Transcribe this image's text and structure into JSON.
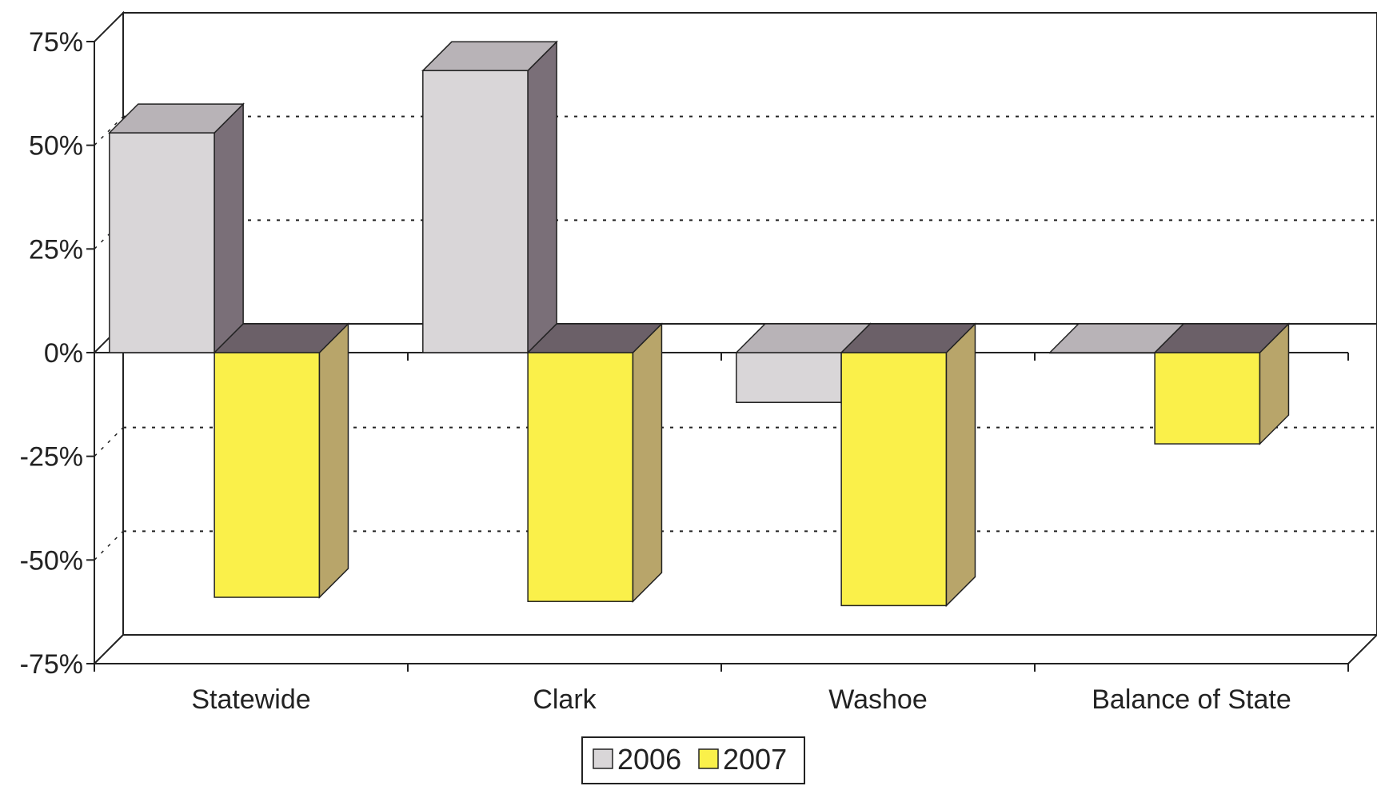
{
  "chart_data": {
    "type": "bar",
    "style": "3d-clustered-column",
    "categories": [
      "Statewide",
      "Clark",
      "Washoe",
      "Balance of State"
    ],
    "series": [
      {
        "name": "2006",
        "values": [
          53,
          68,
          -12,
          0
        ],
        "color": "#d9d6d8",
        "side_color": "#7a6f78",
        "top_color": "#b8b3b7"
      },
      {
        "name": "2007",
        "values": [
          -59,
          -60,
          -61,
          -22
        ],
        "color": "#faf04a",
        "side_color": "#b8a56a",
        "top_color": "#6b6068"
      }
    ],
    "ylim": [
      -75,
      75
    ],
    "yticks": [
      "75%",
      "50%",
      "25%",
      "0%",
      "-25%",
      "-50%",
      "-75%"
    ],
    "ytick_values": [
      75,
      50,
      25,
      0,
      -25,
      -50,
      -75
    ],
    "grid": true,
    "legend_position": "bottom",
    "title": "",
    "xlabel": "",
    "ylabel": ""
  }
}
